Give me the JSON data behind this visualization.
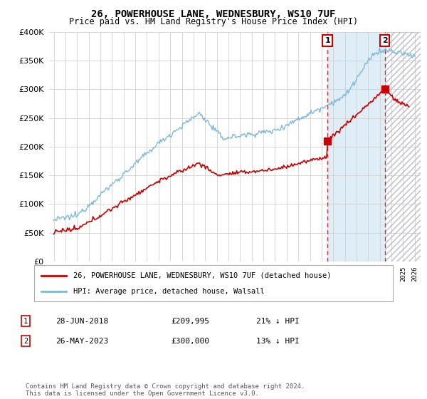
{
  "title": "26, POWERHOUSE LANE, WEDNESBURY, WS10 7UF",
  "subtitle": "Price paid vs. HM Land Registry's House Price Index (HPI)",
  "legend_line1": "26, POWERHOUSE LANE, WEDNESBURY, WS10 7UF (detached house)",
  "legend_line2": "HPI: Average price, detached house, Walsall",
  "sale1_date": "28-JUN-2018",
  "sale1_price": 209995,
  "sale1_label": "£209,995",
  "sale1_pct": "21% ↓ HPI",
  "sale1_year": 2018.5,
  "sale2_date": "26-MAY-2023",
  "sale2_price": 300000,
  "sale2_label": "£300,000",
  "sale2_pct": "13% ↓ HPI",
  "sale2_year": 2023.42,
  "footer": "Contains HM Land Registry data © Crown copyright and database right 2024.\nThis data is licensed under the Open Government Licence v3.0.",
  "ylim": [
    0,
    400000
  ],
  "yticks": [
    0,
    50000,
    100000,
    150000,
    200000,
    250000,
    300000,
    350000,
    400000
  ],
  "hpi_color": "#7db8d8",
  "price_color": "#cc0000",
  "background_color": "#ffffff",
  "grid_color": "#d0d0d0",
  "shade_color": "#daeaf5"
}
